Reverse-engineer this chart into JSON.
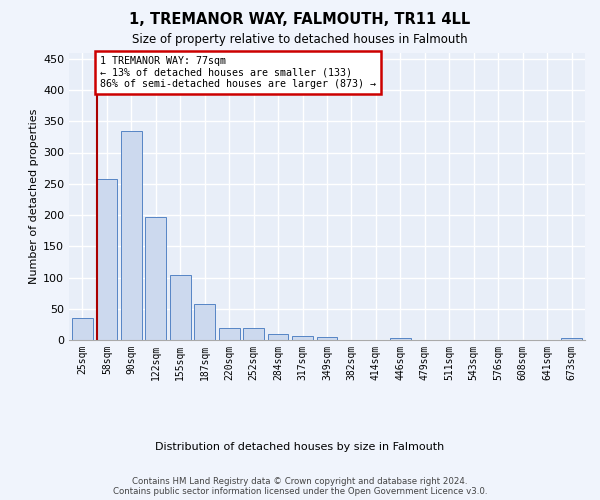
{
  "title": "1, TREMANOR WAY, FALMOUTH, TR11 4LL",
  "subtitle": "Size of property relative to detached houses in Falmouth",
  "xlabel": "Distribution of detached houses by size in Falmouth",
  "ylabel": "Number of detached properties",
  "bar_color": "#ccd9ee",
  "bar_edge_color": "#5585c5",
  "background_color": "#e8eef8",
  "grid_color": "#ffffff",
  "categories": [
    "25sqm",
    "58sqm",
    "90sqm",
    "122sqm",
    "155sqm",
    "187sqm",
    "220sqm",
    "252sqm",
    "284sqm",
    "317sqm",
    "349sqm",
    "382sqm",
    "414sqm",
    "446sqm",
    "479sqm",
    "511sqm",
    "543sqm",
    "576sqm",
    "608sqm",
    "641sqm",
    "673sqm"
  ],
  "values": [
    35,
    257,
    335,
    197,
    104,
    57,
    20,
    20,
    10,
    6,
    5,
    0,
    0,
    4,
    0,
    0,
    0,
    0,
    0,
    0,
    4
  ],
  "ylim": [
    0,
    460
  ],
  "yticks": [
    0,
    50,
    100,
    150,
    200,
    250,
    300,
    350,
    400,
    450
  ],
  "vline_x_idx": 1,
  "annotation_title": "1 TREMANOR WAY: 77sqm",
  "annotation_line1": "← 13% of detached houses are smaller (133)",
  "annotation_line2": "86% of semi-detached houses are larger (873) →",
  "annotation_box_color": "#ffffff",
  "annotation_border_color": "#cc0000",
  "vline_color": "#aa0000",
  "footer_line1": "Contains HM Land Registry data © Crown copyright and database right 2024.",
  "footer_line2": "Contains public sector information licensed under the Open Government Licence v3.0."
}
